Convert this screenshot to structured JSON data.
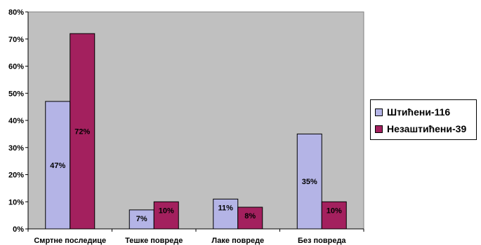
{
  "chart_data": {
    "type": "bar",
    "categories": [
      "Смртне последице",
      "Тешке повреде",
      "Лаке повреде",
      "Без повреда"
    ],
    "series": [
      {
        "name": "Штићени-116",
        "values": [
          47,
          7,
          11,
          35
        ],
        "labels": [
          "47%",
          "7%",
          "11%",
          "35%"
        ],
        "color": "#b4b4e6"
      },
      {
        "name": "Незаштићени-39",
        "values": [
          72,
          10,
          8,
          10
        ],
        "labels": [
          "72%",
          "10%",
          "8%",
          "10%"
        ],
        "color": "#a3205e"
      }
    ],
    "y_ticks": [
      "0%",
      "10%",
      "20%",
      "30%",
      "40%",
      "50%",
      "60%",
      "70%",
      "80%"
    ],
    "ylim": [
      0,
      80
    ],
    "grid": false,
    "legend_position": "right",
    "plot_background": "#c0c0c0"
  }
}
